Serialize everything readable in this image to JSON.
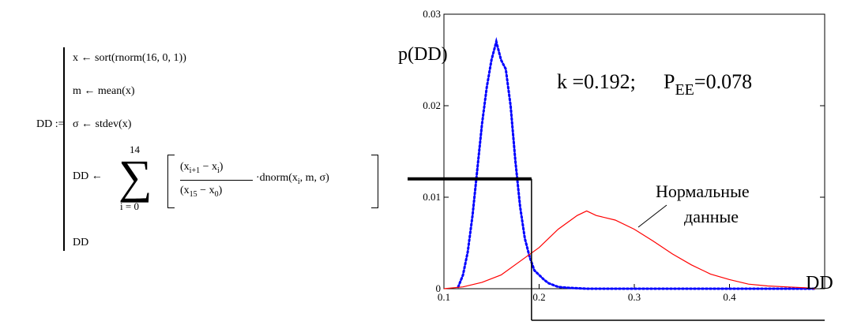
{
  "program": {
    "lhs": "DD :=",
    "line1": "x ← sort(rnorm(16, 0, 1))",
    "line2": "m ← mean(x)",
    "line3": "σ ← stdev(x)",
    "sum_lhs": "DD ←",
    "sum_upper": "14",
    "sum_lower": "i = 0",
    "num_left": "(x",
    "num_sub1": "i+1",
    "num_mid": " − x",
    "num_sub2": "i",
    "num_right": ")",
    "den_left": "(x",
    "den_sub1": "15",
    "den_mid": " − x",
    "den_sub2": "0",
    "den_right": ")",
    "dnorm_a": "·dnorm(x",
    "dnorm_sub": "i",
    "dnorm_b": ", m, σ)",
    "ret": "DD"
  },
  "chart_data": {
    "type": "line",
    "ylabel": "p(DD)",
    "xlabel": "DD",
    "xlim": [
      0.1,
      0.5
    ],
    "ylim": [
      0,
      0.03
    ],
    "xticks": [
      "0.1",
      "0.2",
      "0.3",
      "0.4"
    ],
    "yticks": [
      "0",
      "0.01",
      "0.02",
      "0.03"
    ],
    "annotation_k": "k =0.192;",
    "annotation_p": "P",
    "annotation_p_sub": "EE",
    "annotation_p_val": "=0.078",
    "normal_label_1": "Нормальные",
    "normal_label_2": "данные",
    "series": [
      {
        "style": "dotted",
        "color": "#0000ff",
        "x": [
          0.115,
          0.12,
          0.125,
          0.13,
          0.135,
          0.14,
          0.145,
          0.15,
          0.155,
          0.16,
          0.165,
          0.17,
          0.175,
          0.18,
          0.185,
          0.19,
          0.195,
          0.2,
          0.205,
          0.21,
          0.215,
          0.22,
          0.23,
          0.24,
          0.25,
          0.3,
          0.49
        ],
        "y": [
          0.0002,
          0.0015,
          0.004,
          0.008,
          0.013,
          0.018,
          0.022,
          0.025,
          0.027,
          0.025,
          0.024,
          0.02,
          0.014,
          0.009,
          0.0055,
          0.0035,
          0.002,
          0.0015,
          0.001,
          0.0006,
          0.0004,
          0.0002,
          0.0001,
          5e-05,
          0.0,
          0.0,
          0.0
        ]
      },
      {
        "style": "solid",
        "color": "#ff0000",
        "x": [
          0.1,
          0.12,
          0.14,
          0.16,
          0.18,
          0.2,
          0.22,
          0.24,
          0.25,
          0.26,
          0.28,
          0.3,
          0.32,
          0.34,
          0.36,
          0.38,
          0.4,
          0.42,
          0.44,
          0.46,
          0.48,
          0.49
        ],
        "y": [
          0.0,
          0.0002,
          0.0007,
          0.0015,
          0.003,
          0.0045,
          0.0065,
          0.008,
          0.0085,
          0.008,
          0.0075,
          0.0065,
          0.0052,
          0.0038,
          0.0026,
          0.0016,
          0.001,
          0.0005,
          0.0003,
          0.0002,
          0.0001,
          0.0
        ]
      }
    ],
    "threshold": {
      "x": 0.192,
      "y": 0.012
    }
  }
}
